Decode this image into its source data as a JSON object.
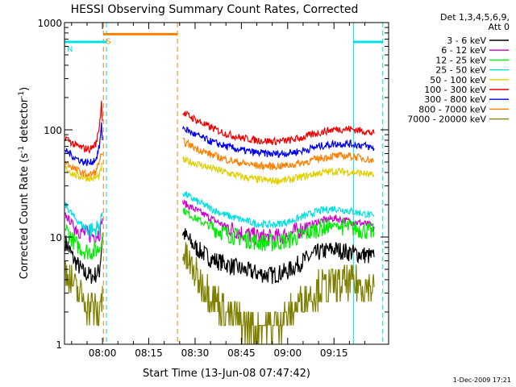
{
  "chart_data": {
    "type": "line",
    "title": "HESSI Observing Summary Count Rates, Corrected",
    "xlabel": "Start Time (13-Jun-08 07:47:42)",
    "ylabel": "Corrected Count Rate (s",
    "ylabel_sup1": "-1",
    "ylabel_mid": " detector",
    "ylabel_sup2": "-1",
    "ylabel_end": ")",
    "footer": "1-Dec-2009 17:21",
    "legend_title": [
      "Det 1,3,4,5,6,9,",
      "Att 0"
    ],
    "x_minutes_range": [
      -12.3,
      92.7
    ],
    "ylim": [
      1,
      1000
    ],
    "y_scale": "log",
    "x_ticks": [
      {
        "minute": 0,
        "label": "08:00"
      },
      {
        "minute": 15,
        "label": "08:15"
      },
      {
        "minute": 30,
        "label": "08:30"
      },
      {
        "minute": 45,
        "label": "08:45"
      },
      {
        "minute": 60,
        "label": "09:00"
      },
      {
        "minute": 75,
        "label": "09:15"
      }
    ],
    "y_ticks": [
      {
        "value": 1,
        "label": "1"
      },
      {
        "value": 10,
        "label": "10"
      },
      {
        "value": 100,
        "label": "100"
      },
      {
        "value": 1000,
        "label": "1000"
      }
    ],
    "series": [
      {
        "name": "3 - 6 keV",
        "color": "#000000",
        "pts": [
          [
            -12,
            9
          ],
          [
            -9,
            6
          ],
          [
            -6,
            4.6
          ],
          [
            -3,
            4.3
          ],
          [
            -1,
            4.8
          ],
          [
            0,
            10
          ],
          [
            26,
            11
          ],
          [
            30,
            8
          ],
          [
            35,
            6.3
          ],
          [
            40,
            5.6
          ],
          [
            45,
            5
          ],
          [
            50,
            4.6
          ],
          [
            55,
            4.4
          ],
          [
            60,
            4.8
          ],
          [
            65,
            6
          ],
          [
            70,
            7.2
          ],
          [
            75,
            7.7
          ],
          [
            80,
            7.2
          ],
          [
            85,
            6.8
          ],
          [
            88,
            6.5
          ]
        ]
      },
      {
        "name": "6 - 12 keV",
        "color": "#d000d0",
        "pts": [
          [
            -12,
            16
          ],
          [
            -9,
            12.5
          ],
          [
            -6,
            10.8
          ],
          [
            -3,
            10.4
          ],
          [
            -1,
            11
          ],
          [
            0,
            15
          ],
          [
            26,
            21
          ],
          [
            30,
            18
          ],
          [
            35,
            15
          ],
          [
            40,
            12.5
          ],
          [
            45,
            11
          ],
          [
            50,
            10
          ],
          [
            55,
            9.8
          ],
          [
            60,
            10.5
          ],
          [
            65,
            12
          ],
          [
            70,
            14
          ],
          [
            75,
            15
          ],
          [
            80,
            14
          ],
          [
            85,
            13.3
          ],
          [
            88,
            12.5
          ]
        ]
      },
      {
        "name": "12 - 25 keV",
        "color": "#00ee00",
        "pts": [
          [
            -12,
            12
          ],
          [
            -9,
            8.8
          ],
          [
            -6,
            7.5
          ],
          [
            -3,
            7.3
          ],
          [
            -1,
            7.8
          ],
          [
            0,
            11
          ],
          [
            26,
            18
          ],
          [
            30,
            15
          ],
          [
            35,
            12.5
          ],
          [
            40,
            10.8
          ],
          [
            45,
            9.8
          ],
          [
            50,
            9
          ],
          [
            55,
            8.8
          ],
          [
            60,
            9.3
          ],
          [
            65,
            10.5
          ],
          [
            70,
            12
          ],
          [
            75,
            12.8
          ],
          [
            80,
            12.3
          ],
          [
            85,
            11.5
          ],
          [
            88,
            11
          ]
        ]
      },
      {
        "name": "25 - 50 keV",
        "color": "#00e0e0",
        "pts": [
          [
            -12,
            20
          ],
          [
            -9,
            15
          ],
          [
            -6,
            12.5
          ],
          [
            -3,
            11.5
          ],
          [
            -1,
            12.5
          ],
          [
            0,
            17
          ],
          [
            26,
            26
          ],
          [
            30,
            22
          ],
          [
            35,
            18.5
          ],
          [
            40,
            16
          ],
          [
            45,
            14.5
          ],
          [
            50,
            13.3
          ],
          [
            55,
            13
          ],
          [
            60,
            13.8
          ],
          [
            65,
            15.5
          ],
          [
            70,
            17.5
          ],
          [
            75,
            18.5
          ],
          [
            80,
            17.5
          ],
          [
            85,
            16.5
          ],
          [
            88,
            15.5
          ]
        ]
      },
      {
        "name": "50 - 100 keV",
        "color": "#e0d000",
        "pts": [
          [
            -12,
            44
          ],
          [
            -9,
            38
          ],
          [
            -6,
            36
          ],
          [
            -3,
            35
          ],
          [
            -1,
            37
          ],
          [
            0,
            48
          ],
          [
            26,
            52
          ],
          [
            30,
            49
          ],
          [
            35,
            44
          ],
          [
            40,
            40
          ],
          [
            45,
            36.5
          ],
          [
            50,
            34.5
          ],
          [
            55,
            33.5
          ],
          [
            60,
            34
          ],
          [
            65,
            36.5
          ],
          [
            70,
            39.5
          ],
          [
            75,
            41
          ],
          [
            80,
            40.5
          ],
          [
            85,
            39
          ],
          [
            88,
            37
          ]
        ]
      },
      {
        "name": "100 - 300 keV",
        "color": "#ee0000",
        "pts": [
          [
            -12,
            85
          ],
          [
            -9,
            72
          ],
          [
            -6,
            67
          ],
          [
            -4,
            66
          ],
          [
            -2,
            75
          ],
          [
            -1,
            110
          ],
          [
            -0.3,
            180
          ],
          [
            0,
            120
          ],
          [
            26,
            145
          ],
          [
            30,
            125
          ],
          [
            35,
            105
          ],
          [
            40,
            92
          ],
          [
            45,
            84
          ],
          [
            50,
            80
          ],
          [
            55,
            78
          ],
          [
            60,
            79
          ],
          [
            65,
            85
          ],
          [
            70,
            94
          ],
          [
            75,
            101
          ],
          [
            80,
            102
          ],
          [
            85,
            97
          ],
          [
            88,
            92
          ]
        ]
      },
      {
        "name": "300 - 800 keV",
        "color": "#0000ee",
        "pts": [
          [
            -12,
            65
          ],
          [
            -9,
            55
          ],
          [
            -6,
            50
          ],
          [
            -4,
            49
          ],
          [
            -2,
            54
          ],
          [
            -1,
            70
          ],
          [
            -0.3,
            110
          ],
          [
            0,
            80
          ],
          [
            26,
            105
          ],
          [
            30,
            90
          ],
          [
            35,
            78
          ],
          [
            40,
            70
          ],
          [
            45,
            64.5
          ],
          [
            50,
            61
          ],
          [
            55,
            59.5
          ],
          [
            60,
            60.5
          ],
          [
            65,
            64
          ],
          [
            70,
            70
          ],
          [
            75,
            74
          ],
          [
            80,
            74
          ],
          [
            85,
            71
          ],
          [
            88,
            67
          ]
        ]
      },
      {
        "name": "800 - 7000 keV",
        "color": "#ff8000",
        "pts": [
          [
            -12,
            50
          ],
          [
            -9,
            43
          ],
          [
            -6,
            39
          ],
          [
            -4,
            38
          ],
          [
            -2,
            41
          ],
          [
            -1,
            52
          ],
          [
            0,
            60
          ],
          [
            26,
            78
          ],
          [
            30,
            68
          ],
          [
            35,
            59
          ],
          [
            40,
            53
          ],
          [
            45,
            49
          ],
          [
            50,
            46.5
          ],
          [
            55,
            45.5
          ],
          [
            60,
            46.5
          ],
          [
            65,
            49.5
          ],
          [
            70,
            54
          ],
          [
            75,
            57
          ],
          [
            80,
            57
          ],
          [
            85,
            54
          ],
          [
            88,
            51
          ]
        ]
      },
      {
        "name": "7000 - 20000 keV",
        "color": "#808000",
        "pts": [
          [
            -12,
            5
          ],
          [
            -9,
            3.3
          ],
          [
            -6,
            2.6
          ],
          [
            -3,
            2.2
          ],
          [
            -1,
            1.8
          ],
          [
            0,
            3.5
          ],
          [
            26,
            7
          ],
          [
            30,
            4.5
          ],
          [
            35,
            3
          ],
          [
            40,
            2
          ],
          [
            45,
            1.6
          ],
          [
            50,
            1.5
          ],
          [
            55,
            1.5
          ],
          [
            60,
            1.8
          ],
          [
            65,
            2.6
          ],
          [
            70,
            3.3
          ],
          [
            75,
            3.6
          ],
          [
            80,
            3.7
          ],
          [
            85,
            3.6
          ],
          [
            88,
            3.4
          ]
        ]
      }
    ],
    "markers": [
      {
        "kind": "flag-bar",
        "label": "S",
        "color": "#ff8000",
        "y_value": 780,
        "x_start": 0.3,
        "x_end": 24.3,
        "start_style": "dashed",
        "end_style": "dashed"
      },
      {
        "kind": "flag-bar",
        "label": "N",
        "color": "#00e0e0",
        "y_value": 660,
        "x_start": -12.3,
        "x_end": 1.3,
        "start_style": "solid",
        "end_style": "dashed"
      },
      {
        "kind": "flag-bar",
        "label": "",
        "color": "#00e0e0",
        "y_value": 660,
        "x_start": 81.3,
        "x_end": 90.8,
        "start_style": "solid",
        "end_style": "dashed"
      }
    ]
  }
}
